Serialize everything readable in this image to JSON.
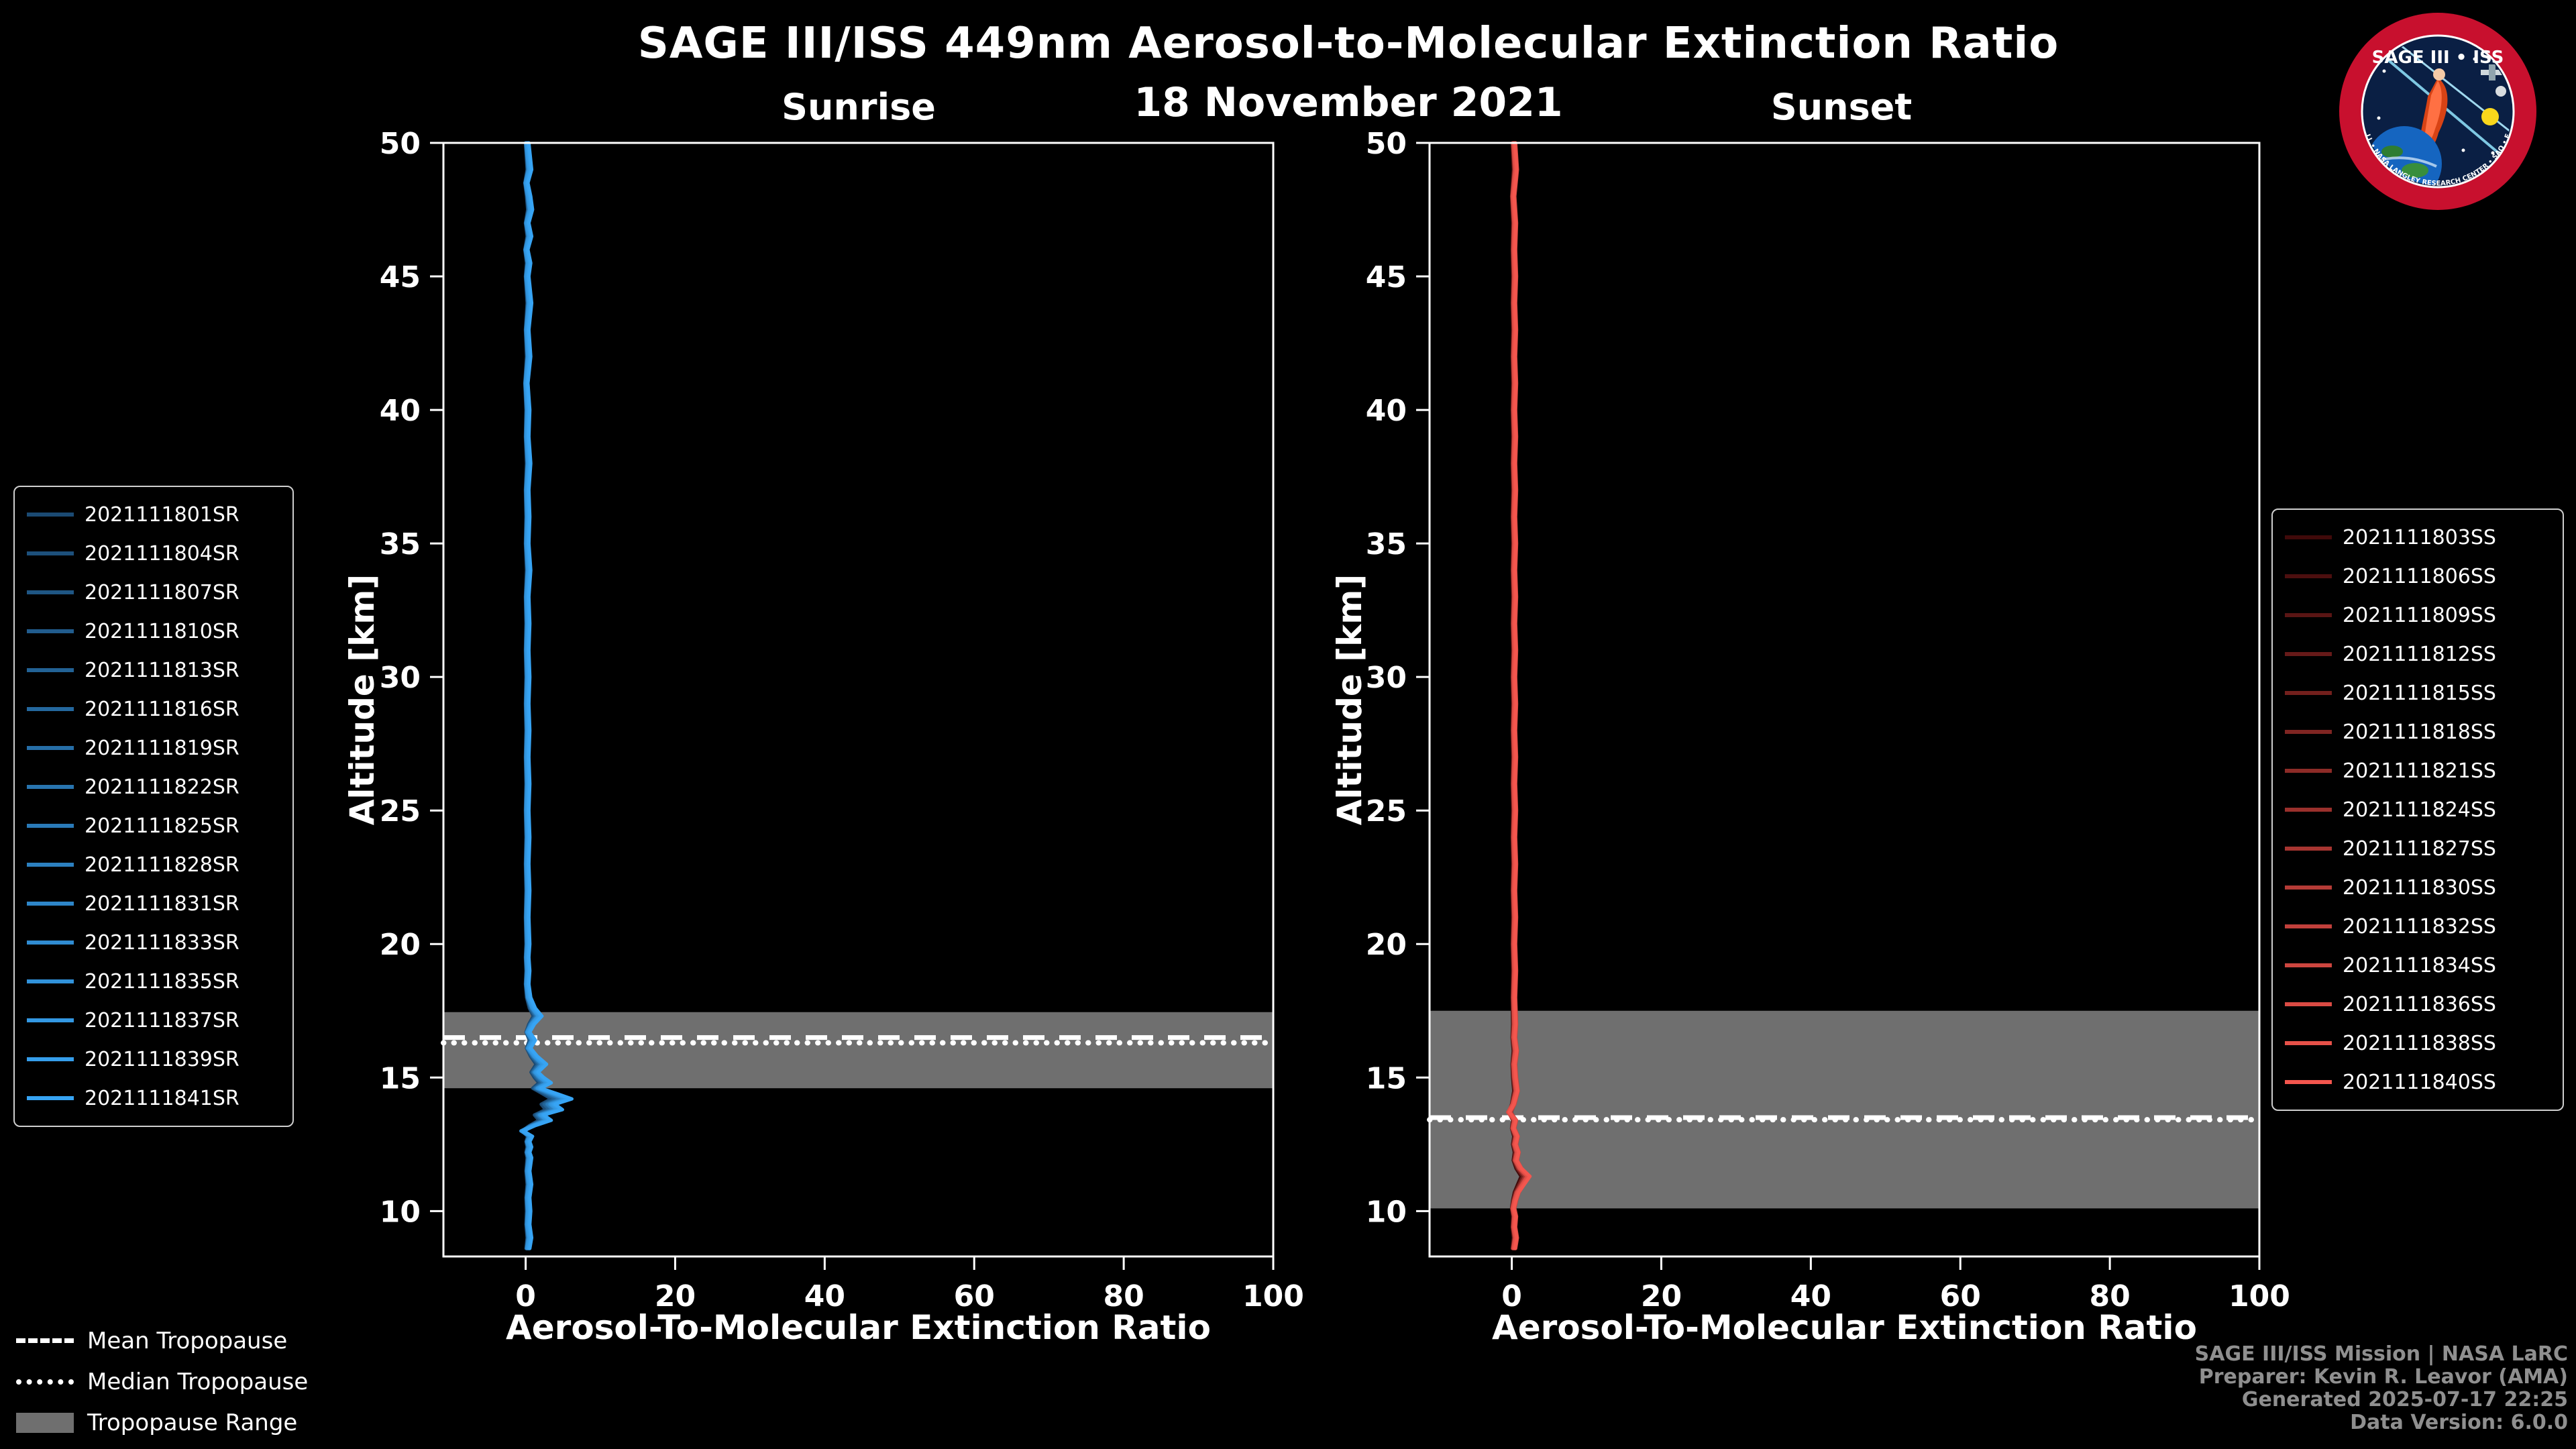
{
  "title": "SAGE III/ISS 449nm Aerosol-to-Molecular Extinction Ratio",
  "date": "18 November 2021",
  "panels": [
    {
      "title": "Sunrise"
    },
    {
      "title": "Sunset"
    }
  ],
  "axis": {
    "ylabel": "Altitude [km]",
    "xlabel": "Aerosol-To-Molecular Extinction Ratio"
  },
  "tropopause_legend": {
    "mean": "Mean Tropopause",
    "median": "Median Tropopause",
    "range": "Tropopause Range"
  },
  "credits": {
    "line1": "SAGE III/ISS Mission | NASA LaRC",
    "line2": "Preparer: Kevin R. Leavor (AMA)",
    "line3": "Generated 2025-07-17 22:25",
    "line4": "Data Version: 6.0.0"
  },
  "logo": {
    "title": "SAGE III • ISS",
    "bottom_text": "BALL • NASA LANGLEY RESEARCH CENTER • SAO • ESA"
  },
  "colors": {
    "background": "#000000",
    "frame": "#ffffff",
    "tropopause_band": "#6f6f6f",
    "tropopause_line": "#ffffff",
    "credits_text": "#8f8f8f",
    "sunrise_start": "#1b4a73",
    "sunrise_end": "#37a4f4",
    "sunset_start": "#400a0a",
    "sunset_end": "#f4564e"
  },
  "chart_data": [
    {
      "type": "line",
      "title": "Sunrise",
      "xlabel": "Aerosol-To-Molecular Extinction Ratio",
      "ylabel": "Altitude [km]",
      "xlim": [
        -11,
        100
      ],
      "ylim": [
        8.3,
        50
      ],
      "xticks": [
        0,
        20,
        40,
        60,
        80,
        100
      ],
      "yticks": [
        10,
        15,
        20,
        25,
        30,
        35,
        40,
        45,
        50
      ],
      "grid": false,
      "legend_position": "left-outside",
      "series_names": [
        "2021111801SR",
        "2021111804SR",
        "2021111807SR",
        "2021111810SR",
        "2021111813SR",
        "2021111816SR",
        "2021111819SR",
        "2021111822SR",
        "2021111825SR",
        "2021111828SR",
        "2021111831SR",
        "2021111833SR",
        "2021111835SR",
        "2021111837SR",
        "2021111839SR",
        "2021111841SR"
      ],
      "color_start": "#1b4a73",
      "color_end": "#37a4f4",
      "profile_alt_ratio": [
        [
          50,
          0.2
        ],
        [
          49,
          0.5
        ],
        [
          48.5,
          0.1
        ],
        [
          48,
          0.4
        ],
        [
          47.5,
          0.6
        ],
        [
          47,
          0.2
        ],
        [
          46.5,
          0.5
        ],
        [
          46,
          0.1
        ],
        [
          45.5,
          0.4
        ],
        [
          45,
          0.2
        ],
        [
          44,
          0.5
        ],
        [
          43,
          0.2
        ],
        [
          42,
          0.4
        ],
        [
          41,
          0.1
        ],
        [
          40,
          0.3
        ],
        [
          39,
          0.2
        ],
        [
          38,
          0.4
        ],
        [
          37,
          0.2
        ],
        [
          36,
          0.3
        ],
        [
          35,
          0.2
        ],
        [
          34,
          0.4
        ],
        [
          33,
          0.2
        ],
        [
          32,
          0.3
        ],
        [
          31,
          0.2
        ],
        [
          30,
          0.3
        ],
        [
          29,
          0.2
        ],
        [
          28,
          0.3
        ],
        [
          27,
          0.2
        ],
        [
          26,
          0.3
        ],
        [
          25,
          0.2
        ],
        [
          24,
          0.3
        ],
        [
          23,
          0.2
        ],
        [
          22,
          0.3
        ],
        [
          21,
          0.2
        ],
        [
          20,
          0.3
        ],
        [
          19.5,
          0.2
        ],
        [
          19,
          0.3
        ],
        [
          18.5,
          0.2
        ],
        [
          18,
          0.4
        ],
        [
          17.6,
          0.9
        ],
        [
          17.3,
          1.6
        ],
        [
          17.0,
          0.8
        ],
        [
          16.7,
          0.3
        ],
        [
          16.4,
          0.9
        ],
        [
          16.1,
          0.4
        ],
        [
          15.8,
          1.1
        ],
        [
          15.5,
          2.1
        ],
        [
          15.2,
          1.2
        ],
        [
          15.0,
          1.8
        ],
        [
          14.8,
          2.6
        ],
        [
          14.6,
          1.5
        ],
        [
          14.4,
          3.2
        ],
        [
          14.2,
          4.8
        ],
        [
          14.0,
          3.0
        ],
        [
          13.8,
          3.8
        ],
        [
          13.6,
          1.8
        ],
        [
          13.4,
          2.6
        ],
        [
          13.2,
          0.9
        ],
        [
          13.0,
          -0.4
        ],
        [
          12.8,
          0.6
        ],
        [
          12.6,
          0.3
        ],
        [
          12.4,
          0.5
        ],
        [
          12.2,
          0.3
        ],
        [
          12.0,
          0.5
        ],
        [
          11.5,
          0.3
        ],
        [
          11.0,
          0.5
        ],
        [
          10.5,
          0.3
        ],
        [
          10.0,
          0.4
        ],
        [
          9.5,
          0.3
        ],
        [
          9.0,
          0.5
        ],
        [
          8.6,
          0.3
        ]
      ],
      "tropopause": {
        "mean_km": 16.5,
        "median_km": 16.3,
        "range_km": [
          14.6,
          17.45
        ]
      }
    },
    {
      "type": "line",
      "title": "Sunset",
      "xlabel": "Aerosol-To-Molecular Extinction Ratio",
      "ylabel": "Altitude [km]",
      "xlim": [
        -11,
        100
      ],
      "ylim": [
        8.3,
        50
      ],
      "xticks": [
        0,
        20,
        40,
        60,
        80,
        100
      ],
      "yticks": [
        10,
        15,
        20,
        25,
        30,
        35,
        40,
        45,
        50
      ],
      "grid": false,
      "legend_position": "right-outside",
      "series_names": [
        "2021111803SS",
        "2021111806SS",
        "2021111809SS",
        "2021111812SS",
        "2021111815SS",
        "2021111818SS",
        "2021111821SS",
        "2021111824SS",
        "2021111827SS",
        "2021111830SS",
        "2021111832SS",
        "2021111834SS",
        "2021111836SS",
        "2021111838SS",
        "2021111840SS"
      ],
      "color_start": "#400a0a",
      "color_end": "#f4564e",
      "profile_alt_ratio": [
        [
          50,
          0.3
        ],
        [
          49,
          0.5
        ],
        [
          48,
          0.2
        ],
        [
          47,
          0.4
        ],
        [
          46,
          0.3
        ],
        [
          45,
          0.4
        ],
        [
          44,
          0.3
        ],
        [
          43,
          0.4
        ],
        [
          42,
          0.3
        ],
        [
          41,
          0.4
        ],
        [
          40,
          0.3
        ],
        [
          39,
          0.4
        ],
        [
          38,
          0.3
        ],
        [
          37,
          0.4
        ],
        [
          36,
          0.3
        ],
        [
          35,
          0.4
        ],
        [
          34,
          0.3
        ],
        [
          33,
          0.4
        ],
        [
          32,
          0.3
        ],
        [
          31,
          0.4
        ],
        [
          30,
          0.3
        ],
        [
          29,
          0.4
        ],
        [
          28,
          0.3
        ],
        [
          27,
          0.4
        ],
        [
          26,
          0.3
        ],
        [
          25,
          0.4
        ],
        [
          24,
          0.3
        ],
        [
          23,
          0.4
        ],
        [
          22,
          0.3
        ],
        [
          21,
          0.4
        ],
        [
          20,
          0.3
        ],
        [
          19,
          0.4
        ],
        [
          18,
          0.3
        ],
        [
          17,
          0.4
        ],
        [
          16.5,
          0.3
        ],
        [
          16,
          0.5
        ],
        [
          15.5,
          0.3
        ],
        [
          15,
          0.4
        ],
        [
          14.5,
          0.6
        ],
        [
          14,
          0.2
        ],
        [
          13.7,
          -0.3
        ],
        [
          13.4,
          0.4
        ],
        [
          13.1,
          0.2
        ],
        [
          12.8,
          0.6
        ],
        [
          12.5,
          0.4
        ],
        [
          12.2,
          0.7
        ],
        [
          11.9,
          0.5
        ],
        [
          11.6,
          1.0
        ],
        [
          11.3,
          1.9
        ],
        [
          11.0,
          1.3
        ],
        [
          10.7,
          0.7
        ],
        [
          10.4,
          0.4
        ],
        [
          10.1,
          0.2
        ],
        [
          9.8,
          0.4
        ],
        [
          9.4,
          0.3
        ],
        [
          9.0,
          0.5
        ],
        [
          8.6,
          0.3
        ]
      ],
      "tropopause": {
        "mean_km": 13.5,
        "median_km": 13.42,
        "range_km": [
          10.1,
          17.5
        ]
      }
    }
  ]
}
